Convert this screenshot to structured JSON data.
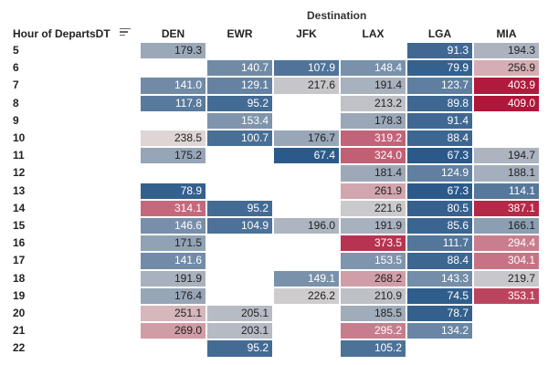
{
  "chart_data": {
    "type": "heatmap",
    "title": "",
    "column_axis_label": "Destination",
    "row_axis_label": "Hour of DepartsDT",
    "columns": [
      "DEN",
      "EWR",
      "JFK",
      "LAX",
      "LGA",
      "MIA"
    ],
    "rows": [
      "5",
      "6",
      "7",
      "8",
      "9",
      "10",
      "11",
      "12",
      "13",
      "14",
      "15",
      "16",
      "17",
      "18",
      "19",
      "20",
      "21",
      "22"
    ],
    "values": [
      [
        179.3,
        null,
        null,
        null,
        91.3,
        194.3
      ],
      [
        null,
        140.7,
        107.9,
        148.4,
        79.9,
        256.9
      ],
      [
        141.0,
        129.1,
        217.6,
        191.4,
        123.7,
        403.9
      ],
      [
        117.8,
        95.2,
        null,
        213.2,
        89.8,
        409.0
      ],
      [
        null,
        153.4,
        null,
        178.3,
        91.4,
        null
      ],
      [
        238.5,
        100.7,
        176.7,
        319.2,
        88.4,
        null
      ],
      [
        175.2,
        null,
        67.4,
        324.0,
        67.3,
        194.7
      ],
      [
        null,
        null,
        null,
        181.4,
        124.9,
        188.1
      ],
      [
        78.9,
        null,
        null,
        261.9,
        67.3,
        114.1
      ],
      [
        314.1,
        95.2,
        null,
        221.6,
        80.5,
        387.1
      ],
      [
        146.6,
        104.9,
        196.0,
        191.9,
        85.6,
        166.1
      ],
      [
        171.5,
        null,
        null,
        373.5,
        111.7,
        294.4
      ],
      [
        141.6,
        null,
        null,
        153.5,
        88.4,
        304.1
      ],
      [
        191.9,
        null,
        149.1,
        268.2,
        143.3,
        219.7
      ],
      [
        176.4,
        null,
        226.2,
        210.9,
        74.5,
        353.1
      ],
      [
        251.1,
        205.1,
        null,
        185.5,
        78.7,
        null
      ],
      [
        269.0,
        203.1,
        null,
        295.2,
        134.2,
        null
      ],
      [
        null,
        95.2,
        null,
        105.2,
        null,
        null
      ]
    ],
    "color_scale": {
      "type": "diverging",
      "low_color": "#2b5a8a",
      "mid_color": "#ddd6d4",
      "high_color": "#b0163a",
      "low_value": 67.3,
      "mid_value": 238.5,
      "high_value": 409.0
    },
    "legend": "none",
    "grid": false
  }
}
